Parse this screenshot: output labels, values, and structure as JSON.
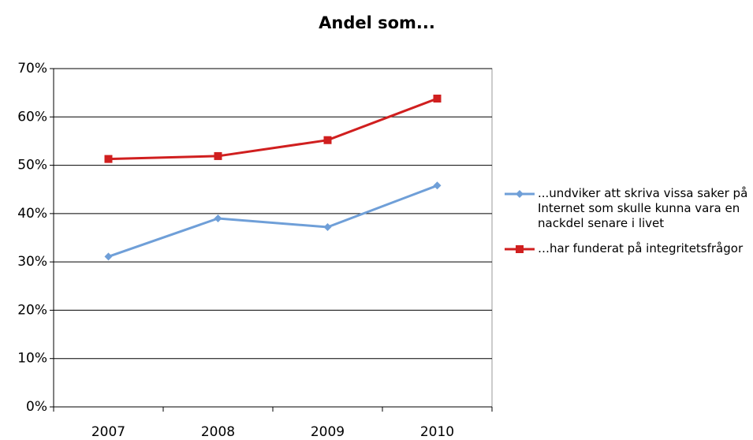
{
  "chart_data": {
    "type": "line",
    "title": "Andel som...",
    "categories": [
      "2007",
      "2008",
      "2009",
      "2010"
    ],
    "series": [
      {
        "name": "...undviker att skriva vissa saker på Internet som skulle kunna vara en nackdel senare i livet",
        "color": "#6f9fd8",
        "values": [
          31.1,
          39.0,
          37.2,
          45.8
        ]
      },
      {
        "name": "…har funderat på integritetsfrågor",
        "color": "#d01f1f",
        "values": [
          51.3,
          51.9,
          55.2,
          63.8
        ]
      }
    ],
    "ylim": [
      0,
      70
    ],
    "yticks": [
      {
        "value": 0,
        "label": "0%"
      },
      {
        "value": 10,
        "label": "10%"
      },
      {
        "value": 20,
        "label": "20%"
      },
      {
        "value": 30,
        "label": "30%"
      },
      {
        "value": 40,
        "label": "40%"
      },
      {
        "value": 50,
        "label": "50%"
      },
      {
        "value": 60,
        "label": "60%"
      },
      {
        "value": 70,
        "label": "70%"
      }
    ],
    "grid": true,
    "legend": "right"
  }
}
